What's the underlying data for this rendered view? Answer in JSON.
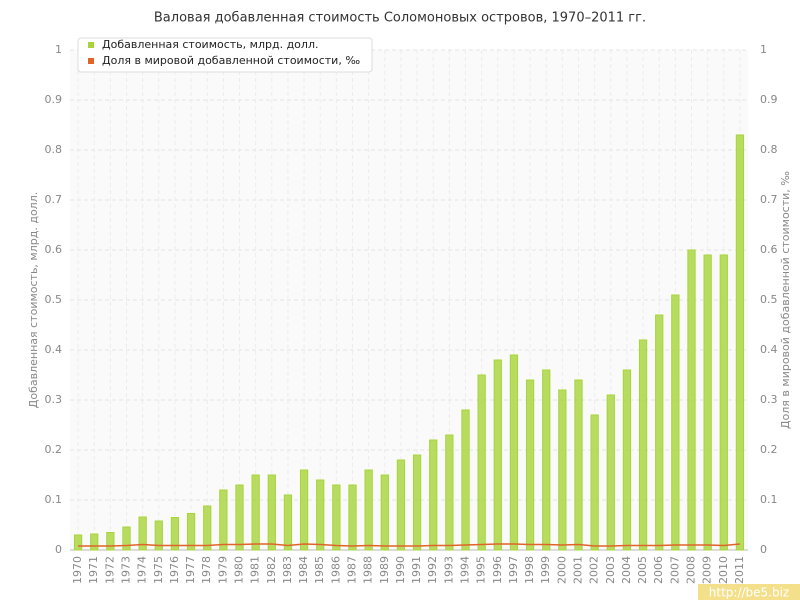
{
  "chart_data": {
    "type": "bar",
    "title": "Валовая добавленная стоимость Соломоновых островов, 1970–2011 гг.",
    "y_label": "Добавленная стоимость, млрд. долл.",
    "y2_label": "Доля в мировой добавленной стоимости, ‰",
    "categories": [
      "1970",
      "1971",
      "1972",
      "1973",
      "1974",
      "1975",
      "1976",
      "1977",
      "1978",
      "1979",
      "1980",
      "1981",
      "1982",
      "1983",
      "1984",
      "1985",
      "1986",
      "1987",
      "1988",
      "1989",
      "1990",
      "1991",
      "1992",
      "1993",
      "1994",
      "1995",
      "1996",
      "1997",
      "1998",
      "1999",
      "2000",
      "2001",
      "2002",
      "2003",
      "2004",
      "2005",
      "2006",
      "2007",
      "2008",
      "2009",
      "2010",
      "2011"
    ],
    "series": [
      {
        "name": "Добавленная стоимость, млрд. долл.",
        "color": "#a8d43a",
        "type": "bar",
        "values": [
          0.03,
          0.032,
          0.035,
          0.046,
          0.066,
          0.058,
          0.065,
          0.073,
          0.088,
          0.12,
          0.13,
          0.15,
          0.15,
          0.11,
          0.16,
          0.14,
          0.13,
          0.13,
          0.16,
          0.15,
          0.18,
          0.19,
          0.22,
          0.23,
          0.28,
          0.35,
          0.38,
          0.39,
          0.34,
          0.36,
          0.32,
          0.34,
          0.27,
          0.31,
          0.36,
          0.42,
          0.47,
          0.51,
          0.6,
          0.59,
          0.59,
          0.83
        ]
      },
      {
        "name": "Доля в мировой добавленной стоимости, ‰",
        "color": "#e0642a",
        "type": "line",
        "axis": "y2",
        "values": [
          0.008,
          0.008,
          0.008,
          0.009,
          0.011,
          0.009,
          0.009,
          0.009,
          0.009,
          0.011,
          0.011,
          0.012,
          0.012,
          0.009,
          0.012,
          0.011,
          0.009,
          0.008,
          0.009,
          0.008,
          0.008,
          0.008,
          0.009,
          0.009,
          0.01,
          0.011,
          0.012,
          0.012,
          0.011,
          0.011,
          0.01,
          0.011,
          0.008,
          0.008,
          0.009,
          0.009,
          0.009,
          0.01,
          0.01,
          0.01,
          0.009,
          0.012
        ]
      }
    ],
    "ylim": [
      0,
      1
    ],
    "yticks": [
      0,
      0.1,
      0.2,
      0.3,
      0.4,
      0.5,
      0.6,
      0.7,
      0.8,
      0.9,
      1
    ],
    "y2lim": [
      0,
      1
    ],
    "y2ticks": [
      0,
      0.1,
      0.2,
      0.3,
      0.4,
      0.5,
      0.6,
      0.7,
      0.8,
      0.9,
      1
    ],
    "grid": true,
    "legend": "top-left",
    "watermark": "http://be5.biz"
  }
}
